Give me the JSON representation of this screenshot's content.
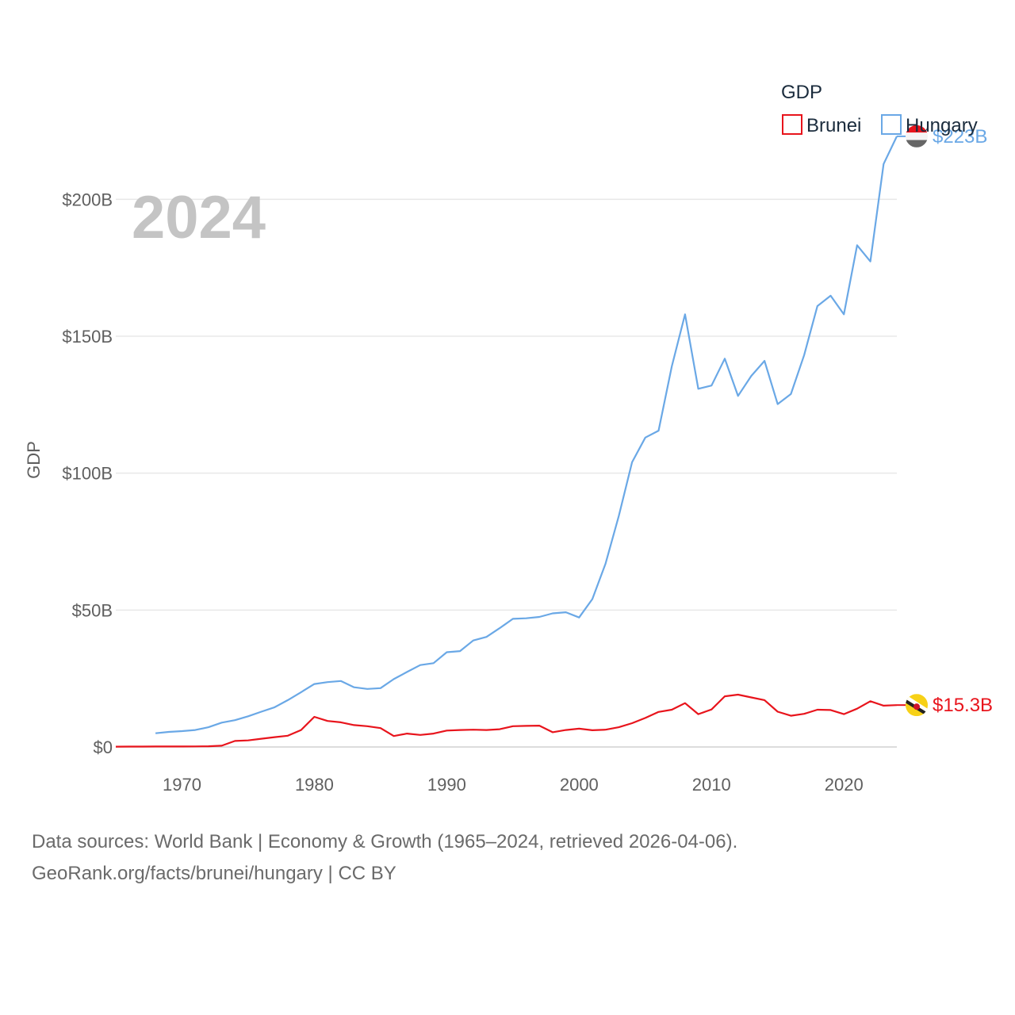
{
  "chart_data": {
    "type": "line",
    "current_year": "2024",
    "ylabel": "GDP",
    "ylim": [
      0,
      225000000000
    ],
    "xlim": [
      1965,
      2024
    ],
    "y_ticks": [
      {
        "value": 0,
        "label": "$0"
      },
      {
        "value": 50000000000,
        "label": "$50B"
      },
      {
        "value": 100000000000,
        "label": "$100B"
      },
      {
        "value": 150000000000,
        "label": "$150B"
      },
      {
        "value": 200000000000,
        "label": "$200B"
      }
    ],
    "x_ticks": [
      {
        "value": 1970,
        "label": "1970"
      },
      {
        "value": 1980,
        "label": "1980"
      },
      {
        "value": 1990,
        "label": "1990"
      },
      {
        "value": 2000,
        "label": "2000"
      },
      {
        "value": 2010,
        "label": "2010"
      },
      {
        "value": 2020,
        "label": "2020"
      }
    ],
    "legend_title": "GDP",
    "series": [
      {
        "name": "Brunei",
        "color": "#e8141c",
        "end_label": "$15.3B",
        "flag_icon": "brunei-flag-icon",
        "points": [
          [
            1965,
            0.13
          ],
          [
            1966,
            0.14
          ],
          [
            1967,
            0.15
          ],
          [
            1968,
            0.16
          ],
          [
            1969,
            0.17
          ],
          [
            1970,
            0.18
          ],
          [
            1971,
            0.2
          ],
          [
            1972,
            0.26
          ],
          [
            1973,
            0.45
          ],
          [
            1974,
            2.2
          ],
          [
            1975,
            2.4
          ],
          [
            1976,
            3.0
          ],
          [
            1977,
            3.6
          ],
          [
            1978,
            4.1
          ],
          [
            1979,
            6.2
          ],
          [
            1980,
            11.0
          ],
          [
            1981,
            9.5
          ],
          [
            1982,
            9.0
          ],
          [
            1983,
            8.0
          ],
          [
            1984,
            7.6
          ],
          [
            1985,
            6.9
          ],
          [
            1986,
            4.0
          ],
          [
            1987,
            4.9
          ],
          [
            1988,
            4.4
          ],
          [
            1989,
            4.9
          ],
          [
            1990,
            6.0
          ],
          [
            1991,
            6.2
          ],
          [
            1992,
            6.3
          ],
          [
            1993,
            6.2
          ],
          [
            1994,
            6.5
          ],
          [
            1995,
            7.6
          ],
          [
            1996,
            7.7
          ],
          [
            1997,
            7.8
          ],
          [
            1998,
            5.4
          ],
          [
            1999,
            6.2
          ],
          [
            2000,
            6.7
          ],
          [
            2001,
            6.1
          ],
          [
            2002,
            6.3
          ],
          [
            2003,
            7.2
          ],
          [
            2004,
            8.7
          ],
          [
            2005,
            10.6
          ],
          [
            2006,
            12.8
          ],
          [
            2007,
            13.6
          ],
          [
            2008,
            16.0
          ],
          [
            2009,
            12.0
          ],
          [
            2010,
            13.7
          ],
          [
            2011,
            18.5
          ],
          [
            2012,
            19.1
          ],
          [
            2013,
            18.1
          ],
          [
            2014,
            17.1
          ],
          [
            2015,
            12.9
          ],
          [
            2016,
            11.4
          ],
          [
            2017,
            12.1
          ],
          [
            2018,
            13.6
          ],
          [
            2019,
            13.5
          ],
          [
            2020,
            12.0
          ],
          [
            2021,
            14.0
          ],
          [
            2022,
            16.7
          ],
          [
            2023,
            15.1
          ],
          [
            2024,
            15.3
          ]
        ]
      },
      {
        "name": "Hungary",
        "color": "#6aa8e6",
        "end_label": "$223B",
        "flag_icon": "hungary-flag-icon",
        "points": [
          [
            1968,
            5.0
          ],
          [
            1969,
            5.5
          ],
          [
            1970,
            5.8
          ],
          [
            1971,
            6.2
          ],
          [
            1972,
            7.2
          ],
          [
            1973,
            8.9
          ],
          [
            1974,
            9.8
          ],
          [
            1975,
            11.2
          ],
          [
            1976,
            12.9
          ],
          [
            1977,
            14.5
          ],
          [
            1978,
            17.1
          ],
          [
            1979,
            20.0
          ],
          [
            1980,
            23.0
          ],
          [
            1981,
            23.7
          ],
          [
            1982,
            24.1
          ],
          [
            1983,
            21.8
          ],
          [
            1984,
            21.2
          ],
          [
            1985,
            21.5
          ],
          [
            1986,
            24.8
          ],
          [
            1987,
            27.4
          ],
          [
            1988,
            29.9
          ],
          [
            1989,
            30.6
          ],
          [
            1990,
            34.6
          ],
          [
            1991,
            35.0
          ],
          [
            1992,
            38.9
          ],
          [
            1993,
            40.2
          ],
          [
            1994,
            43.4
          ],
          [
            1995,
            46.8
          ],
          [
            1996,
            47.0
          ],
          [
            1997,
            47.5
          ],
          [
            1998,
            48.8
          ],
          [
            1999,
            49.2
          ],
          [
            2000,
            47.3
          ],
          [
            2001,
            54.0
          ],
          [
            2002,
            67.0
          ],
          [
            2003,
            84.4
          ],
          [
            2004,
            104.0
          ],
          [
            2005,
            113.0
          ],
          [
            2006,
            115.5
          ],
          [
            2007,
            139.0
          ],
          [
            2008,
            158.0
          ],
          [
            2009,
            130.8
          ],
          [
            2010,
            132.0
          ],
          [
            2011,
            141.8
          ],
          [
            2012,
            128.2
          ],
          [
            2013,
            135.5
          ],
          [
            2014,
            141.0
          ],
          [
            2015,
            125.2
          ],
          [
            2016,
            128.9
          ],
          [
            2017,
            143.1
          ],
          [
            2018,
            161.0
          ],
          [
            2019,
            164.8
          ],
          [
            2020,
            158.0
          ],
          [
            2021,
            183.2
          ],
          [
            2022,
            177.3
          ],
          [
            2023,
            212.9
          ],
          [
            2024,
            223.0
          ]
        ]
      }
    ]
  },
  "footer": {
    "line1": "Data sources: World Bank | Economy & Growth (1965–2024, retrieved 2026-04-06).",
    "line2": "GeoRank.org/facts/brunei/hungary | CC BY"
  }
}
